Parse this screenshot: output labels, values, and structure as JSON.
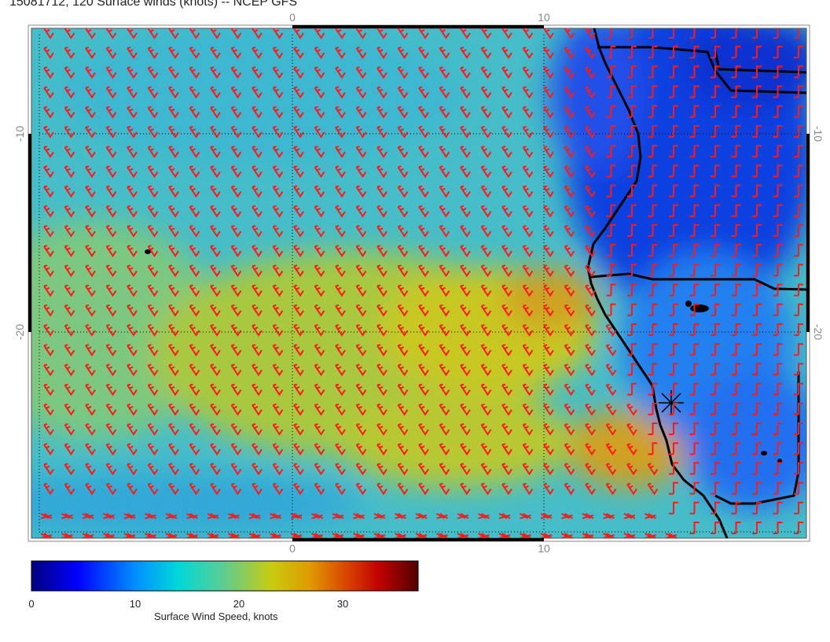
{
  "title": "15081712, 120 Surface winds (knots) -- NCEP GFS",
  "axes": {
    "top_ticks": [
      "0",
      "10"
    ],
    "bottom_ticks": [
      "0",
      "10"
    ],
    "left_ticks": [
      "-10",
      "-20"
    ],
    "right_ticks": [
      "-10",
      "-20"
    ]
  },
  "colorbar": {
    "label": "Surface Wind Speed, knots",
    "ticks": [
      "0",
      "10",
      "20",
      "30"
    ],
    "range": [
      0,
      37
    ],
    "colormap": [
      "#00007f",
      "#0000ff",
      "#007fff",
      "#00e0e0",
      "#40d0a0",
      "#9acd32",
      "#d4c800",
      "#e09000",
      "#cc3300",
      "#990000",
      "#5a0000"
    ]
  },
  "colors": {
    "barb": "#ff1a1a",
    "coast": "#000000",
    "grid": "#000000"
  },
  "icons": [
    "location-star-icon"
  ]
}
